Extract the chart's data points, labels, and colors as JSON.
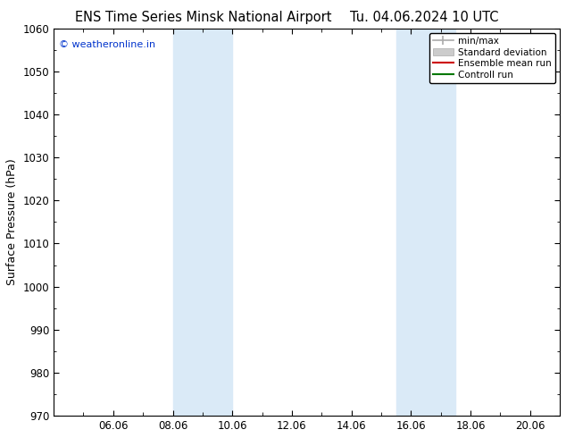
{
  "title_left": "ENS Time Series Minsk National Airport",
  "title_right": "Tu. 04.06.2024 10 UTC",
  "ylabel": "Surface Pressure (hPa)",
  "ylim": [
    970,
    1060
  ],
  "yticks": [
    970,
    980,
    990,
    1000,
    1010,
    1020,
    1030,
    1040,
    1050,
    1060
  ],
  "xtick_labels": [
    "06.06",
    "08.06",
    "10.06",
    "12.06",
    "14.06",
    "16.06",
    "18.06",
    "20.06"
  ],
  "xtick_positions": [
    2,
    4,
    6,
    8,
    10,
    12,
    14,
    16
  ],
  "xlim": [
    0,
    17
  ],
  "shaded_bands": [
    {
      "xmin": 4.0,
      "xmax": 6.0,
      "color": "#daeaf7"
    },
    {
      "xmin": 11.5,
      "xmax": 13.5,
      "color": "#daeaf7"
    }
  ],
  "background_color": "#ffffff",
  "watermark": "© weatheronline.in",
  "watermark_color": "#0033cc",
  "legend_items": [
    {
      "label": "min/max",
      "type": "line_caps",
      "color": "#aaaaaa",
      "lw": 1.2
    },
    {
      "label": "Standard deviation",
      "type": "band",
      "color": "#cccccc"
    },
    {
      "label": "Ensemble mean run",
      "type": "line",
      "color": "#cc0000",
      "lw": 1.5
    },
    {
      "label": "Controll run",
      "type": "line",
      "color": "#007700",
      "lw": 1.5
    }
  ],
  "title_fontsize": 10.5,
  "label_fontsize": 9,
  "tick_fontsize": 8.5
}
